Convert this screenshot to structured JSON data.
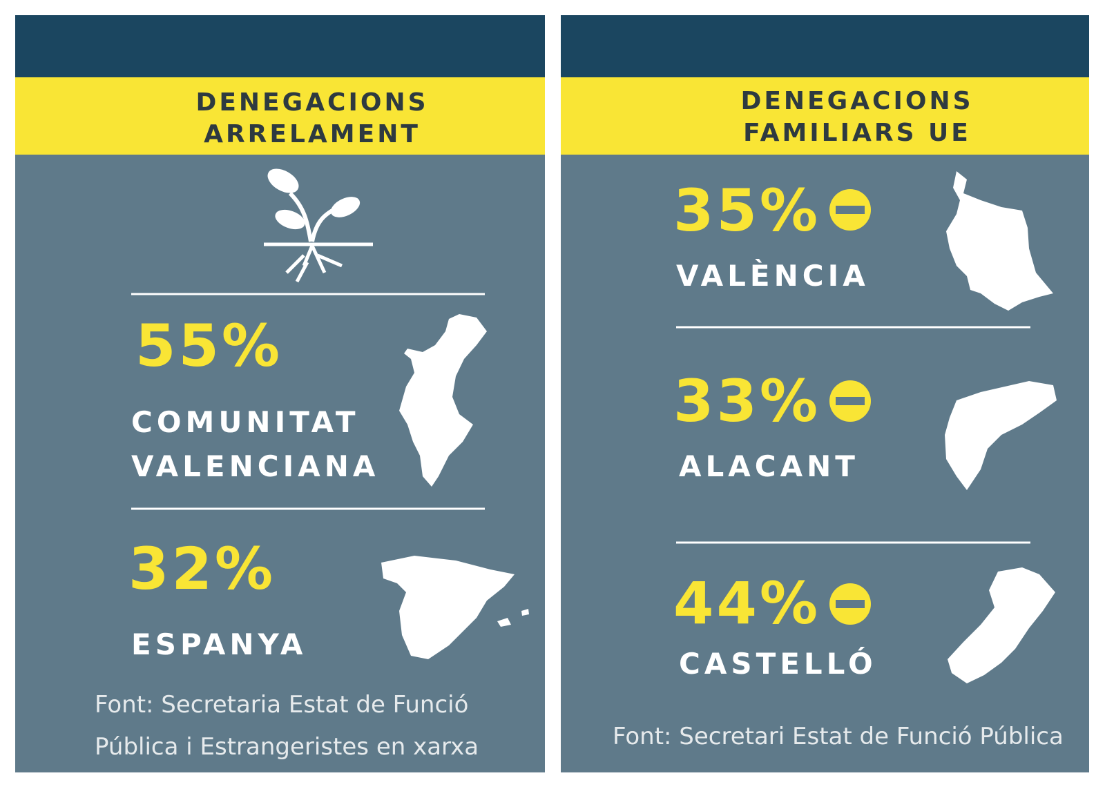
{
  "panels": [
    {
      "title": [
        "DENEGACIONS",
        "ARRELAMENT"
      ],
      "stats": [
        {
          "value": "55%",
          "label": [
            "COMUNITAT",
            "VALENCIANA"
          ]
        },
        {
          "value": "32%",
          "label": [
            "ESPANYA"
          ]
        }
      ],
      "source": [
        "Font: Secretaria Estat de Funció",
        "Pública i Estrangeristes en xarxa"
      ]
    },
    {
      "title": [
        "DENEGACIONS",
        "FAMILIARS UE"
      ],
      "stats": [
        {
          "value": "35%",
          "label": [
            "VALÈNCIA"
          ]
        },
        {
          "value": "33%",
          "label": [
            "ALACANT"
          ]
        },
        {
          "value": "44%",
          "label": [
            "CASTELLÓ"
          ]
        }
      ],
      "source": [
        "Font: Secretari Estat de Funció Pública"
      ]
    }
  ]
}
